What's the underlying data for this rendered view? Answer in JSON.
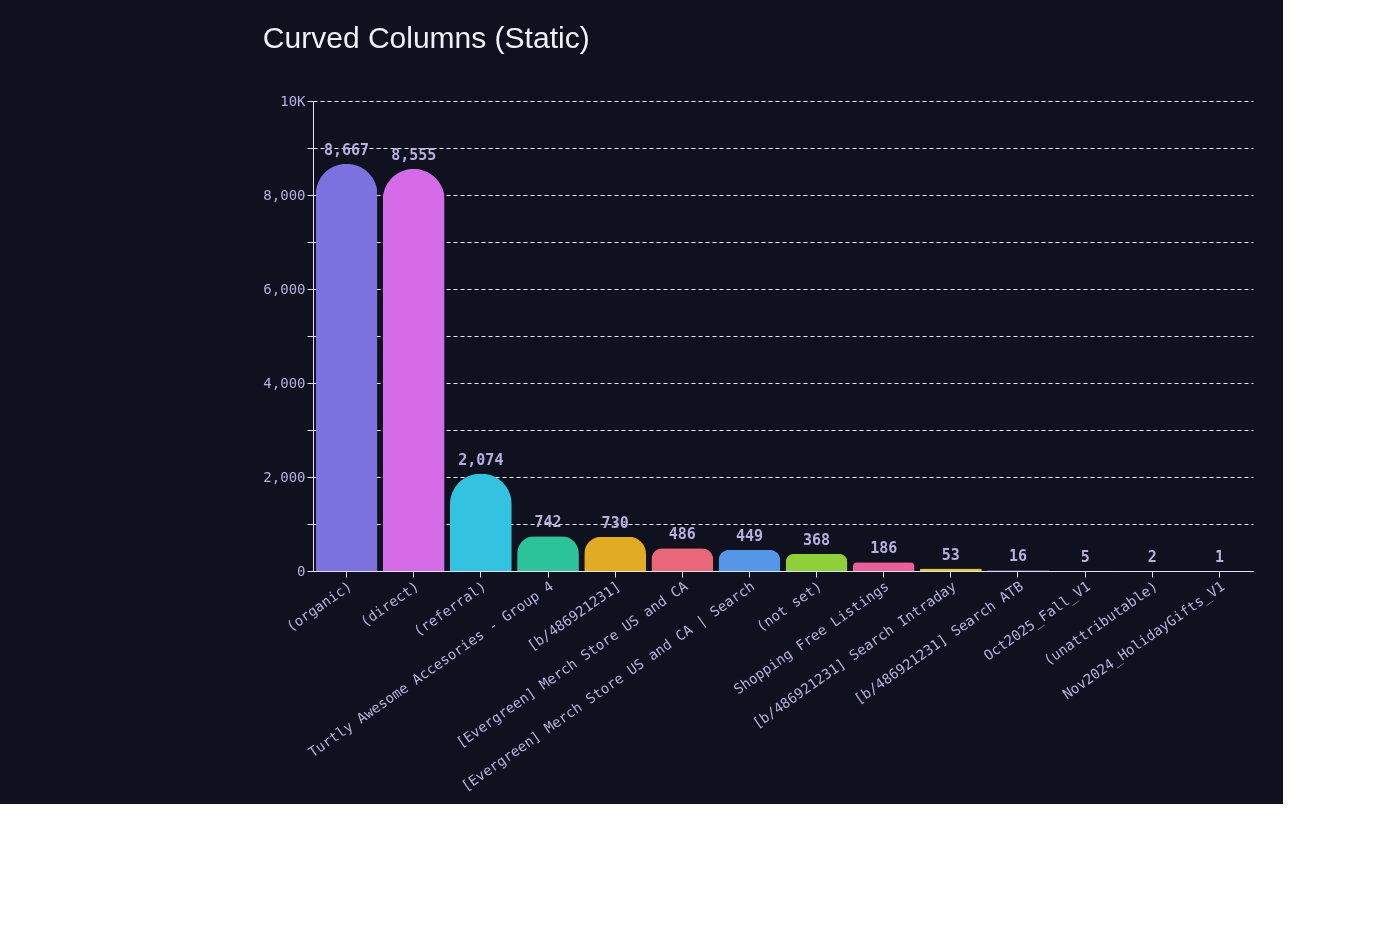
{
  "chart_data": {
    "type": "bar",
    "title": "Curved Columns (Static)",
    "categories": [
      "(organic)",
      "(direct)",
      "(referral)",
      "Turtly Awesome Accesories - Group 4",
      "[b/486921231]",
      "[Evergreen] Merch Store US and CA",
      "[Evergreen] Merch Store US and CA | Search",
      "(not set)",
      "Shopping Free Listings",
      "[b/486921231] Search Intraday",
      "[b/486921231] Search ATB",
      "Oct2025_Fall_V1",
      "(unattributable)",
      "Nov2024_HolidayGifts_V1"
    ],
    "values": [
      8667,
      8555,
      2074,
      742,
      730,
      486,
      449,
      368,
      186,
      53,
      16,
      5,
      2,
      1
    ],
    "colors": [
      "#7b72e0",
      "#d56be6",
      "#33c3e0",
      "#2dc39a",
      "#e2ab24",
      "#e8687a",
      "#5597e6",
      "#8fd03a",
      "#e8609a",
      "#e6c62c",
      "#9a6fe0",
      "#33c3e0",
      "#2dc39a",
      "#e2ab24"
    ],
    "ylim": [
      0,
      10000
    ],
    "yticks": [
      0,
      {
        "value": 1000,
        "label": null
      },
      {
        "value": 2000,
        "label": "2,000"
      },
      {
        "value": 3000,
        "label": null
      },
      {
        "value": 4000,
        "label": "4,000"
      },
      {
        "value": 5000,
        "label": null
      },
      {
        "value": 6000,
        "label": "6,000"
      },
      {
        "value": 7000,
        "label": null
      },
      {
        "value": 8000,
        "label": "8,000"
      },
      {
        "value": 9000,
        "label": null
      },
      {
        "value": 10000,
        "label": "10K"
      }
    ],
    "value_labels": [
      "8,667",
      "8,555",
      "2,074",
      "742",
      "730",
      "486",
      "449",
      "368",
      "186",
      "53",
      "16",
      "5",
      "2",
      "1"
    ],
    "grid": "y"
  }
}
